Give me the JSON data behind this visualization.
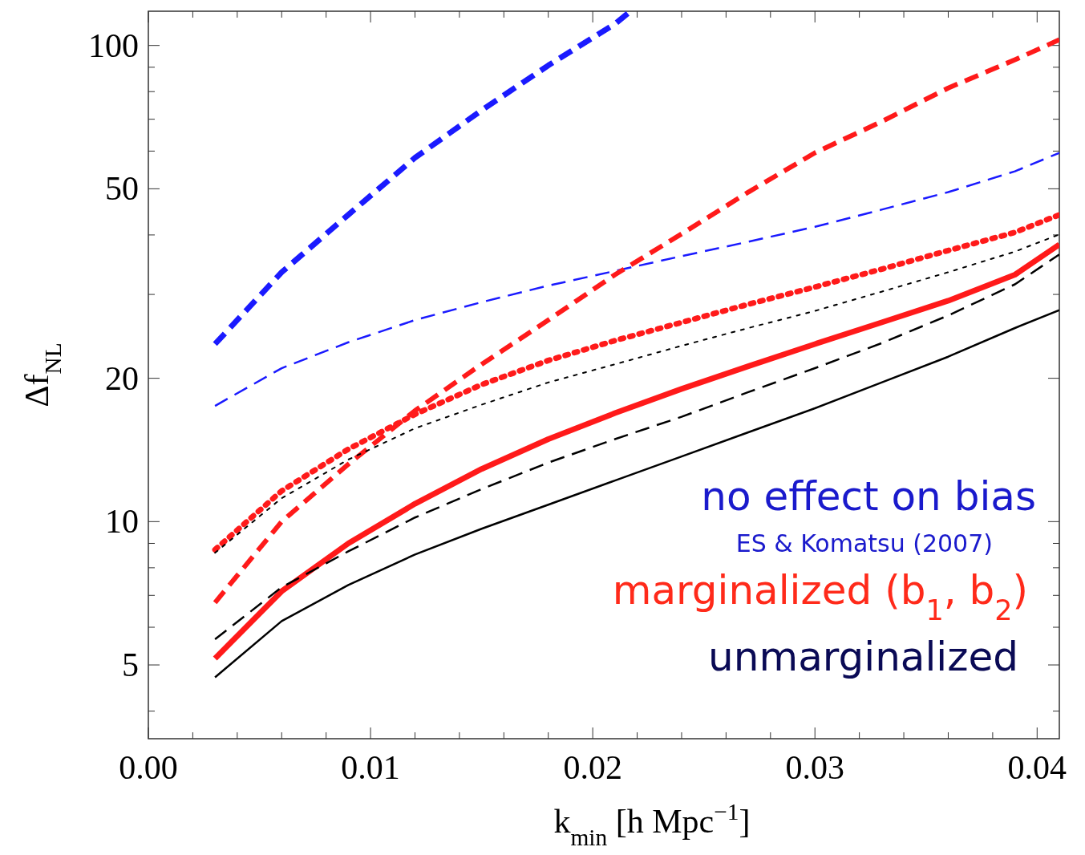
{
  "chart_data": {
    "type": "line",
    "xlabel": "k$_{min}$ [h Mpc$^{−1}$]",
    "ylabel": "Δf$_{NL}$",
    "log": "y",
    "grid": false,
    "xlim": [
      0,
      0.041
    ],
    "ylim": [
      3.5,
      118
    ],
    "xticks": [
      {
        "value": 0,
        "label": "0.00"
      },
      {
        "value": 0.002,
        "label": null
      },
      {
        "value": 0.004,
        "label": null
      },
      {
        "value": 0.006,
        "label": null
      },
      {
        "value": 0.008,
        "label": null
      },
      0.01,
      {
        "value": 0.012,
        "label": null
      },
      {
        "value": 0.014,
        "label": null
      },
      {
        "value": 0.016,
        "label": null
      },
      {
        "value": 0.018,
        "label": null
      },
      0.02,
      {
        "value": 0.022,
        "label": null
      },
      {
        "value": 0.024,
        "label": null
      },
      {
        "value": 0.026,
        "label": null
      },
      {
        "value": 0.028,
        "label": null
      },
      0.03,
      {
        "value": 0.032,
        "label": null
      },
      {
        "value": 0.034,
        "label": null
      },
      {
        "value": 0.036,
        "label": null
      },
      {
        "value": 0.038,
        "label": null
      },
      0.04
    ],
    "yticks": [
      {
        "value": 4,
        "label": null
      },
      5,
      {
        "value": 6,
        "label": null
      },
      {
        "value": 7,
        "label": null
      },
      {
        "value": 8,
        "label": null
      },
      {
        "value": 9,
        "label": null
      },
      10,
      20,
      {
        "value": 30,
        "label": null
      },
      {
        "value": 40,
        "label": null
      },
      50,
      {
        "value": 60,
        "label": null
      },
      {
        "value": 70,
        "label": null
      },
      {
        "value": 80,
        "label": null
      },
      {
        "value": 90,
        "label": null
      },
      100
    ],
    "x": [
      0.003,
      0.006,
      0.009,
      0.012,
      0.015,
      0.018,
      0.021,
      0.024,
      0.027,
      0.03,
      0.033,
      0.036,
      0.039,
      0.041
    ],
    "series": [
      {
        "color": "#1a1aff",
        "line_style": "dashed",
        "x": [
          0.003,
          0.006,
          0.009,
          0.012,
          0.015,
          0.018,
          0.021,
          0.0217
        ],
        "values": [
          23.6,
          33.4,
          44.1,
          58.1,
          73.1,
          90.8,
          111,
          118
        ]
      },
      {
        "color": "#1a1aff",
        "line_style": "dashed",
        "values": [
          17.5,
          21,
          23.8,
          26.5,
          28.9,
          31.3,
          33.6,
          36.1,
          38.7,
          41.6,
          45.2,
          49.2,
          54.4,
          59.5
        ]
      },
      {
        "color": "#ff1a1a",
        "line_style": "dashed",
        "values": [
          6.76,
          10,
          13.2,
          17.1,
          21.4,
          26.5,
          33,
          40.2,
          49.2,
          59.5,
          69.2,
          81.4,
          93.3,
          102.8
        ]
      },
      {
        "color": "#ff1a1a",
        "line_style": "dotted",
        "values": [
          8.73,
          11.6,
          14.2,
          16.8,
          19.4,
          21.8,
          24,
          26.2,
          28.6,
          31.1,
          33.9,
          37.1,
          40.5,
          44.1
        ]
      },
      {
        "color": "#ff1a1a",
        "line_style": "solid",
        "values": [
          5.16,
          7.14,
          9,
          10.9,
          12.9,
          14.9,
          16.9,
          19,
          21.2,
          23.6,
          26.2,
          29.1,
          33,
          38.2
        ]
      },
      {
        "color": "#000000",
        "line_style": "dotted",
        "values": [
          8.6,
          11.2,
          13.5,
          15.7,
          17.6,
          19.6,
          21.4,
          23.4,
          25.5,
          27.7,
          30.4,
          33.4,
          36.9,
          40.1
        ]
      },
      {
        "color": "#000000",
        "line_style": "dashed",
        "values": [
          5.66,
          7.28,
          8.66,
          10.2,
          11.7,
          13.3,
          14.9,
          16.6,
          18.7,
          21,
          23.7,
          27.1,
          31.5,
          36.4
        ]
      },
      {
        "color": "#000000",
        "line_style": "solid",
        "values": [
          4.71,
          6.18,
          7.36,
          8.53,
          9.66,
          10.85,
          12.2,
          13.7,
          15.4,
          17.3,
          19.6,
          22.2,
          25.5,
          27.8
        ]
      }
    ],
    "annotations": [
      "no effect on bias",
      "ES & Komatsu (2007)",
      "marginalized (b$_{1}$, b$_{2}$)",
      "unmarginalized"
    ]
  }
}
